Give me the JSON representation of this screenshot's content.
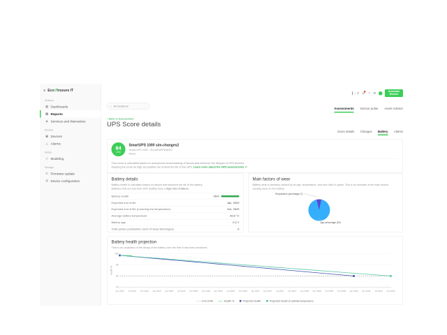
{
  "app": {
    "logo_prefix": "Eco",
    "logo_suffix": "truxure IT"
  },
  "icons": {
    "hamburger": "≡",
    "loop": "↺",
    "history": "↺",
    "bell": "Ω",
    "help": "?",
    "gear": "⚙",
    "home": "⌂",
    "back": "‹",
    "external": "↗"
  },
  "colors": {
    "brand_green": "#3dcd58",
    "link_green": "#2fa84f",
    "health_bar": "#2fa84f"
  },
  "sidebar": {
    "sections": [
      {
        "label": "Analyze",
        "items": [
          {
            "label": "Dashboards",
            "icon": "▦",
            "active": false
          },
          {
            "label": "Reports",
            "icon": "▤",
            "active": true
          },
          {
            "label": "Services and Warranties",
            "icon": "◈",
            "active": false
          }
        ]
      },
      {
        "label": "Monitor",
        "items": [
          {
            "label": "Devices",
            "icon": "▣",
            "active": false
          },
          {
            "label": "Alarms",
            "icon": "△",
            "active": false
          }
        ]
      },
      {
        "label": "Model",
        "items": [
          {
            "label": "Modeling",
            "icon": "◇",
            "active": false
          }
        ]
      },
      {
        "label": "Manage",
        "items": [
          {
            "label": "Firmware update",
            "icon": "↻",
            "active": false
          },
          {
            "label": "Device configuration",
            "icon": "⚙",
            "active": false
          }
        ]
      }
    ]
  },
  "header": {
    "location_label": "All locations",
    "icons": [
      {
        "name": "search-icon",
        "type": "search"
      },
      {
        "name": "history-icon",
        "glyph": "↺"
      },
      {
        "name": "notifications-icon",
        "glyph": "Ω",
        "badge": true
      },
      {
        "name": "help-icon",
        "glyph": "?"
      },
      {
        "name": "settings-icon",
        "glyph": "⚙"
      }
    ],
    "tabs": [
      {
        "label": "Assessments",
        "active": true
      },
      {
        "label": "Sensor pulse",
        "active": false
      },
      {
        "label": "Asset Advisor",
        "active": false
      }
    ],
    "schneider_line1": "Schneider",
    "schneider_line2": "Electric"
  },
  "detail": {
    "back_link": "Back to Assessment",
    "title": "UPS Score details",
    "sub_tabs": [
      {
        "label": "Score details",
        "active": false
      },
      {
        "label": "Changes",
        "active": false
      },
      {
        "label": "Battery",
        "active": true
      },
      {
        "label": "Alarms",
        "active": false
      }
    ]
  },
  "score_card": {
    "score": "84",
    "score_max": "/100",
    "device_name": "SmartUPS 1000 sim-changes2",
    "device_model": "Smart-UPS 1000 · SN AS0987NN5010",
    "device_location": "Roma",
    "description_line1": "This score is calculated based on anonymous benchmarking of factors that influence the lifespan of UPS devices.",
    "description_line2": "Keeping the score as high as possible can extend the life of the UPS.",
    "learn_more": "Learn more about the UPS assessments"
  },
  "battery_details": {
    "title": "Battery details",
    "description_line1": "Battery health is calculated based on factors that influence the life of the battery.",
    "description_line2_prefix": "Batteries that are less than 90% healthy have a ",
    "description_line2_bold": "high risk of failure.",
    "rows": [
      {
        "label": "Battery health",
        "value": "95%",
        "bar": true
      },
      {
        "label": "Expected end of life",
        "value": "Jan, 2029"
      },
      {
        "label": "Expected end of life (Lowering the temperature)",
        "value": "Oct, 2029"
      },
      {
        "label": "Average battery temperature",
        "value": "26.6 °C"
      },
      {
        "label": "Battery age",
        "value": "0.2 Y"
      },
      {
        "label": "Total cycles (cumulative count of deep discharges)",
        "value": "6"
      }
    ]
  },
  "factors": {
    "description_line1": "Battery wear is primarily caused by its age, temperature, and how often it cycles. This is an estimate of the main factors",
    "description_line2": "causing wear on the battery."
  },
  "projection": {
    "description": "This is our projection of the decay of the battery over the time it has been monitored."
  },
  "chart_data": [
    {
      "type": "pie",
      "title": "Main factors of wear",
      "start_angle": -14,
      "slices": [
        {
          "label": "Temperature percentage",
          "value": 7,
          "color": "#5b49d6"
        },
        {
          "label": "Age percentage",
          "value": 93,
          "color": "#35aefc"
        }
      ],
      "legend_position": "callout-labels"
    },
    {
      "type": "line",
      "title": "Battery health projection",
      "xlabel": "",
      "ylabel": "Health %",
      "yticks": [
        100,
        80,
        60,
        40
      ],
      "ylim": [
        40,
        100
      ],
      "grid": false,
      "legend_position": "bottom",
      "x": [
        "Apr 2024",
        "Jul 2024",
        "Oct 2024",
        "Jan 2025",
        "Apr 2025",
        "Jul 2025",
        "Oct 2025",
        "Jan 2026",
        "Apr 2026",
        "Jul 2026",
        "Oct 2026",
        "Jan 2027",
        "Apr 2027",
        "Jul 2027",
        "Oct 2027",
        "Jan 2028",
        "Apr 2028",
        "Jul 2028",
        "Oct 2028",
        "Jan 2029",
        "Apr 2029",
        "Jul 2029",
        "Oct 2029"
      ],
      "series": [
        {
          "name": "End of life",
          "color": "#a6a6a6",
          "dash": true,
          "constant": 60
        },
        {
          "name": "Health %",
          "color": "#3dcd58",
          "values": [
            97,
            96.4,
            null,
            null,
            null,
            null,
            null,
            null,
            null,
            null,
            null,
            null,
            null,
            null,
            null,
            null,
            null,
            null,
            null,
            null,
            null,
            null,
            null
          ]
        },
        {
          "name": "Projected health",
          "color": "#4053b0",
          "markers": [
            0,
            19
          ],
          "values": [
            97,
            95.1,
            93.2,
            91.2,
            89.3,
            87.3,
            85.4,
            83.4,
            81.5,
            79.5,
            77.6,
            75.6,
            73.7,
            71.7,
            69.8,
            67.8,
            65.9,
            63.9,
            62,
            60,
            null,
            null,
            null
          ]
        },
        {
          "name": "Projected health at optimal temperature",
          "color": "#57c8a6",
          "markers": [
            22
          ],
          "values": [
            97,
            95.3,
            93.6,
            92,
            90.3,
            88.6,
            86.9,
            85.2,
            83.5,
            81.9,
            80.2,
            78.5,
            76.8,
            75.1,
            73.4,
            71.8,
            70.1,
            68.4,
            66.7,
            65,
            63.4,
            61.7,
            60
          ]
        }
      ],
      "legend": [
        {
          "label": "End of life",
          "style": "dashed",
          "color": "#a6a6a6"
        },
        {
          "label": "Health %",
          "style": "line",
          "color": "#3dcd58"
        },
        {
          "label": "Projected health",
          "style": "square",
          "color": "#4053b0"
        },
        {
          "label": "Projected health at optimal temperature",
          "style": "square",
          "color": "#57c8a6"
        }
      ]
    }
  ]
}
